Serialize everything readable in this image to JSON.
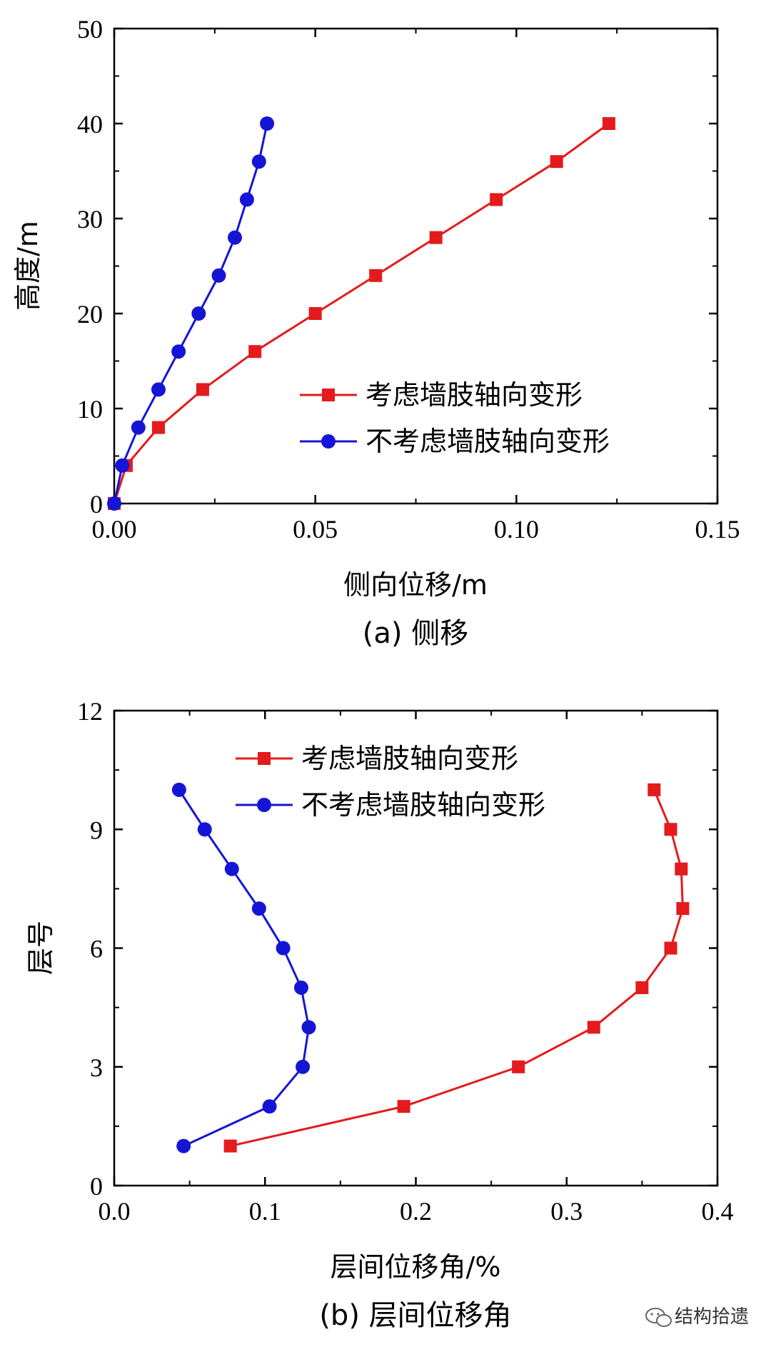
{
  "chart_data": [
    {
      "type": "line",
      "caption": "(a) 侧移",
      "xlabel": "侧向位移/m",
      "ylabel": "高度/m",
      "xlim": [
        0,
        0.15
      ],
      "ylim": [
        0,
        50
      ],
      "xticks": [
        0,
        0.05,
        0.1,
        0.15
      ],
      "xtick_labels": [
        "0.00",
        "0.05",
        "0.10",
        "0.15"
      ],
      "yticks": [
        0,
        10,
        20,
        30,
        40,
        50
      ],
      "ytick_labels": [
        "0",
        "10",
        "20",
        "30",
        "40",
        "50"
      ],
      "legend_position": "right-middle",
      "series": [
        {
          "name": "考虑墙肢轴向变形",
          "color": "#e41a1c",
          "marker": "square",
          "x": [
            0.0,
            0.003,
            0.011,
            0.022,
            0.035,
            0.05,
            0.065,
            0.08,
            0.095,
            0.11,
            0.123
          ],
          "y": [
            0,
            4,
            8,
            12,
            16,
            20,
            24,
            28,
            32,
            36,
            40
          ]
        },
        {
          "name": "不考虑墙肢轴向变形",
          "color": "#1515d6",
          "marker": "circle",
          "x": [
            0.0,
            0.002,
            0.006,
            0.011,
            0.016,
            0.021,
            0.026,
            0.03,
            0.033,
            0.036,
            0.038
          ],
          "y": [
            0,
            4,
            8,
            12,
            16,
            20,
            24,
            28,
            32,
            36,
            40
          ]
        }
      ]
    },
    {
      "type": "line",
      "caption": "(b) 层间位移角",
      "xlabel": "层间位移角/%",
      "ylabel": "层号",
      "xlim": [
        0,
        0.4
      ],
      "ylim": [
        0,
        12
      ],
      "xticks": [
        0,
        0.1,
        0.2,
        0.3,
        0.4
      ],
      "xtick_labels": [
        "0.0",
        "0.1",
        "0.2",
        "0.3",
        "0.4"
      ],
      "yticks": [
        0,
        3,
        6,
        9,
        12
      ],
      "ytick_labels": [
        "0",
        "3",
        "6",
        "9",
        "12"
      ],
      "legend_position": "top-right",
      "series": [
        {
          "name": "考虑墙肢轴向变形",
          "color": "#e41a1c",
          "marker": "square",
          "x": [
            0.077,
            0.192,
            0.268,
            0.318,
            0.35,
            0.369,
            0.377,
            0.376,
            0.369,
            0.358
          ],
          "y": [
            1,
            2,
            3,
            4,
            5,
            6,
            7,
            8,
            9,
            10
          ]
        },
        {
          "name": "不考虑墙肢轴向变形",
          "color": "#1515d6",
          "marker": "circle",
          "x": [
            0.046,
            0.103,
            0.125,
            0.129,
            0.124,
            0.112,
            0.096,
            0.078,
            0.06,
            0.043
          ],
          "y": [
            1,
            2,
            3,
            4,
            5,
            6,
            7,
            8,
            9,
            10
          ]
        }
      ]
    }
  ],
  "watermark": {
    "text": "结构拾遗",
    "icon": "wechat-icon"
  }
}
